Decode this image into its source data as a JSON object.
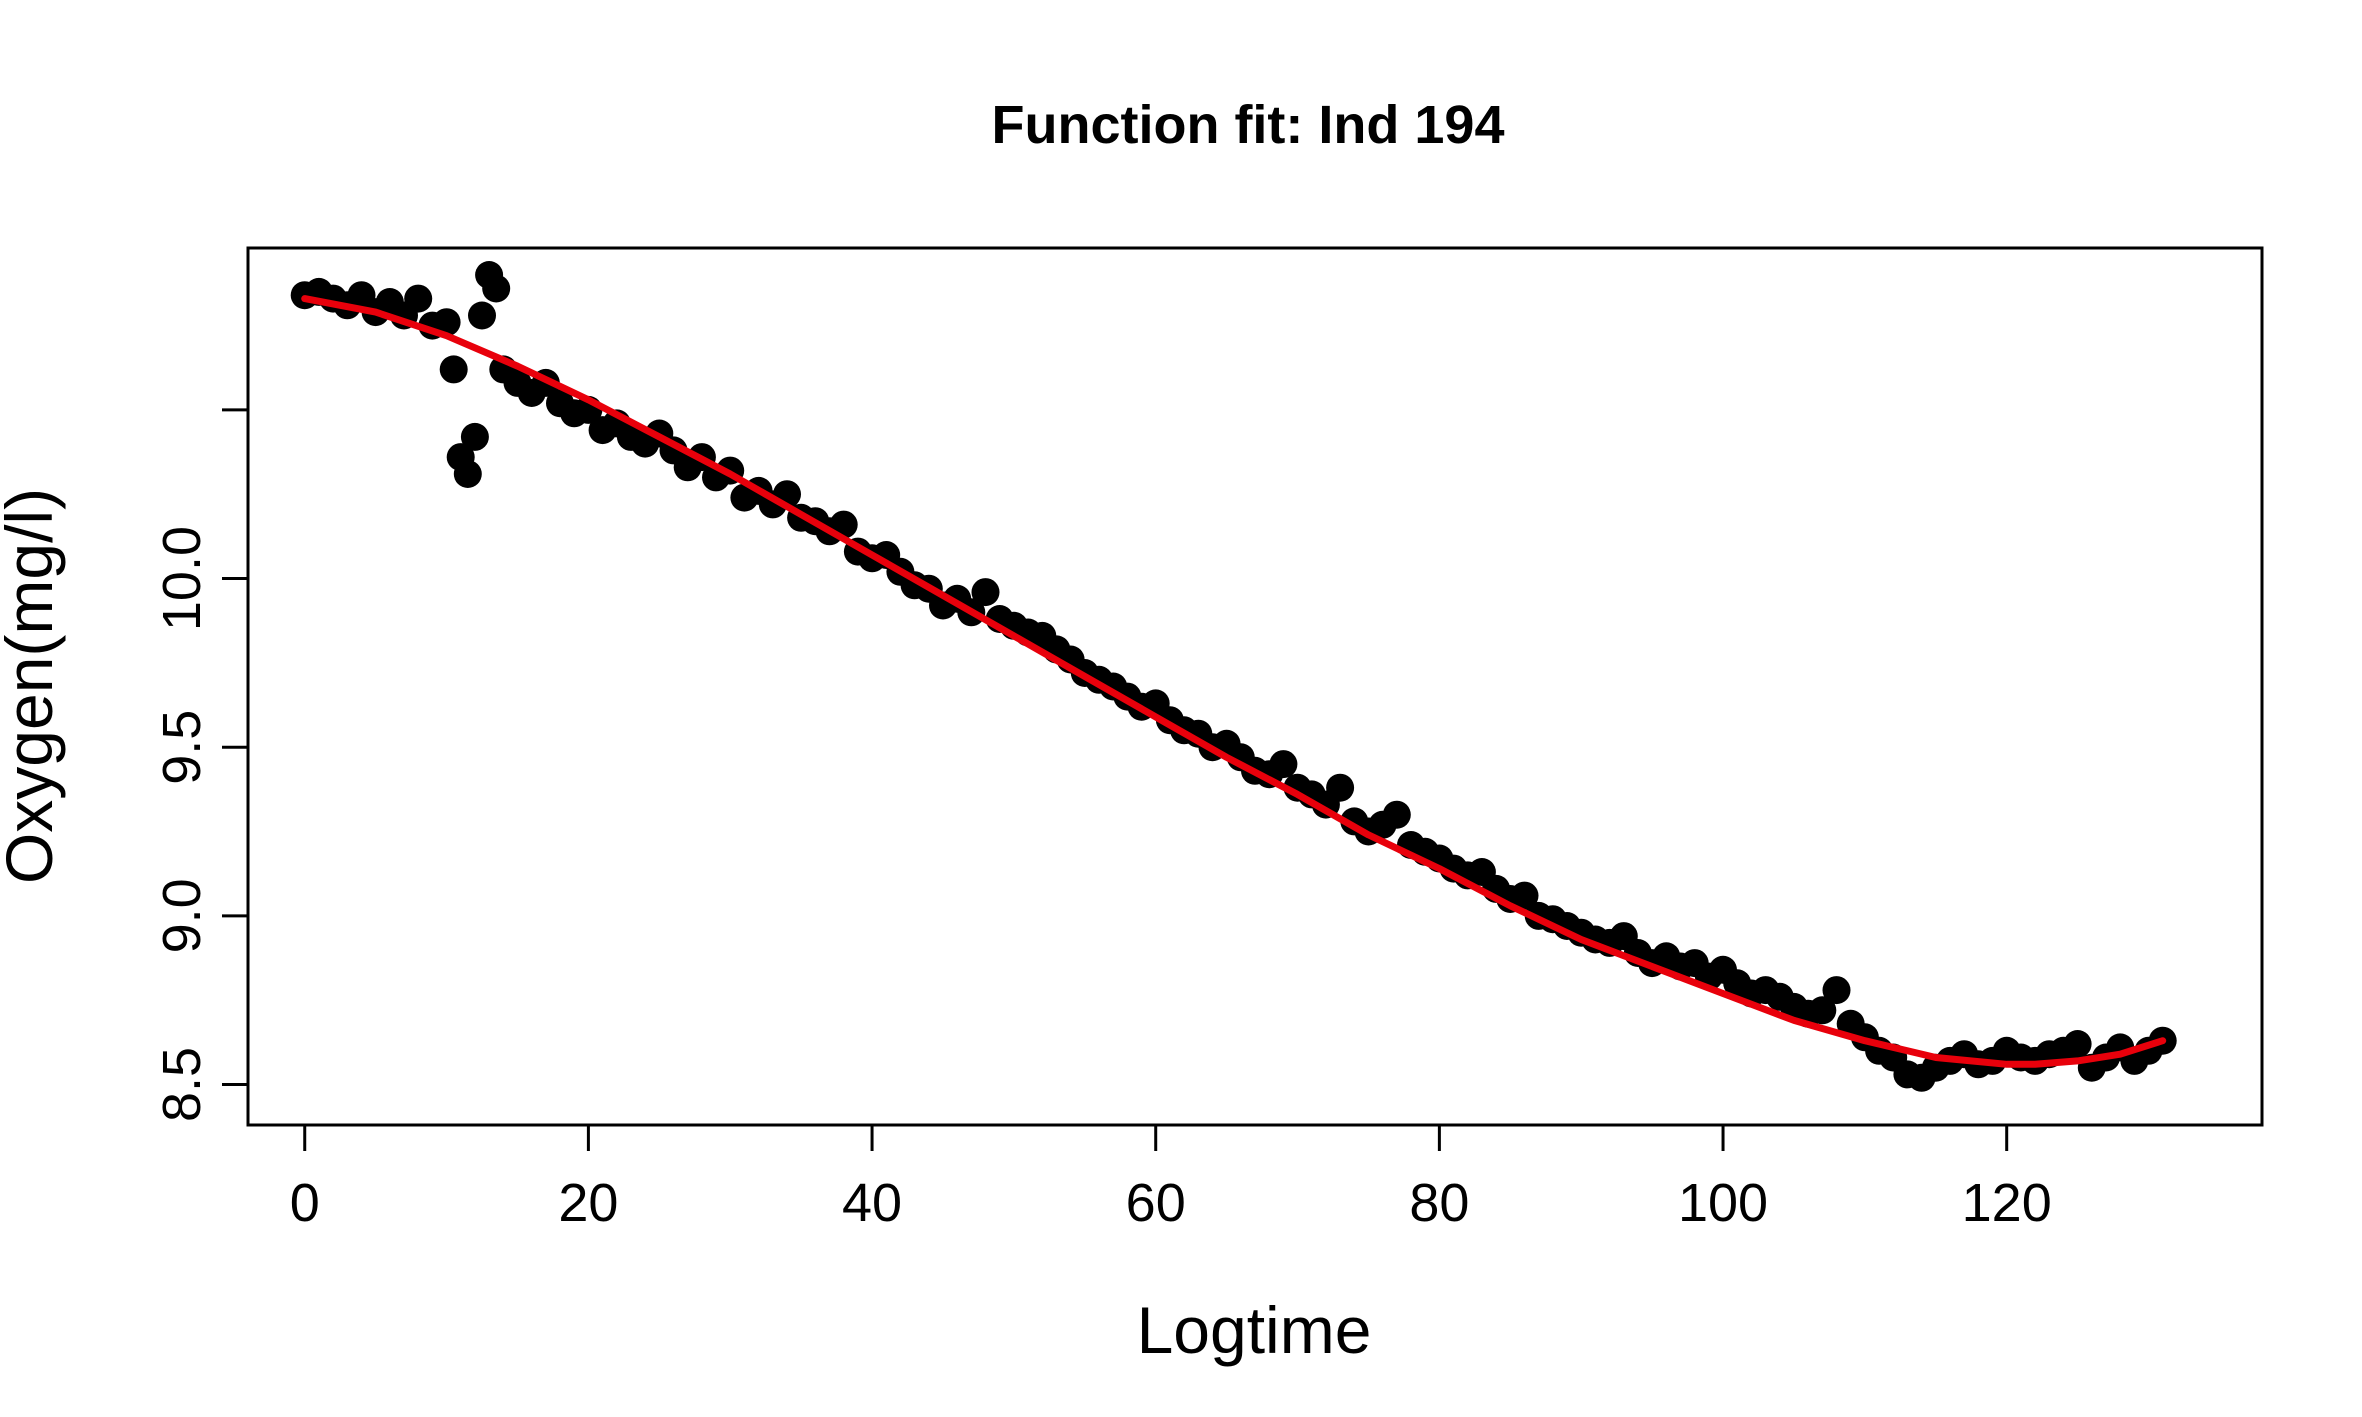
{
  "chart_data": {
    "type": "scatter",
    "title": "Function fit: Ind 194",
    "xlabel": "Logtime",
    "ylabel": "Oxygen(mg/l)",
    "xlim": [
      -4,
      138
    ],
    "ylim": [
      8.38,
      10.98
    ],
    "x_ticks": [
      0,
      20,
      40,
      60,
      80,
      100,
      120
    ],
    "x_tick_labels": [
      "0",
      "20",
      "40",
      "60",
      "80",
      "100",
      "120"
    ],
    "y_ticks": [
      8.5,
      9.0,
      9.5,
      10.0,
      10.5
    ],
    "y_tick_labels": [
      "8.5",
      "9.0",
      "9.5",
      "10.0",
      ""
    ],
    "grid": false,
    "legend": "none",
    "points_color": "#000000",
    "fit_color": "#e8000b",
    "series": [
      {
        "kind": "points",
        "x": [
          0,
          1,
          2,
          3,
          4,
          5,
          6,
          7,
          8,
          9,
          10,
          10.5,
          11,
          11.5,
          12,
          12.5,
          13,
          13.5,
          14,
          15,
          16,
          17,
          18,
          19,
          20,
          21,
          22,
          23,
          24,
          25,
          26,
          27,
          28,
          29,
          30,
          31,
          32,
          33,
          34,
          35,
          36,
          37,
          38,
          39,
          40,
          41,
          42,
          43,
          44,
          45,
          46,
          47,
          48,
          49,
          50,
          51,
          52,
          53,
          54,
          55,
          56,
          57,
          58,
          59,
          60,
          61,
          62,
          63,
          64,
          65,
          66,
          67,
          68,
          69,
          70,
          71,
          72,
          73,
          74,
          75,
          76,
          77,
          78,
          79,
          80,
          81,
          82,
          83,
          84,
          85,
          86,
          87,
          88,
          89,
          90,
          91,
          92,
          93,
          94,
          95,
          96,
          97,
          98,
          99,
          100,
          101,
          102,
          103,
          104,
          105,
          106,
          107,
          108,
          109,
          110,
          111,
          112,
          113,
          114,
          115,
          116,
          117,
          118,
          119,
          120,
          121,
          122,
          123,
          124,
          125,
          126,
          127,
          128,
          129,
          130,
          131
        ],
        "y": [
          10.84,
          10.85,
          10.83,
          10.81,
          10.84,
          10.79,
          10.82,
          10.78,
          10.83,
          10.75,
          10.76,
          10.62,
          10.36,
          10.31,
          10.42,
          10.78,
          10.9,
          10.86,
          10.62,
          10.58,
          10.55,
          10.58,
          10.52,
          10.49,
          10.5,
          10.44,
          10.46,
          10.42,
          10.4,
          10.43,
          10.38,
          10.33,
          10.36,
          10.3,
          10.32,
          10.24,
          10.26,
          10.22,
          10.25,
          10.18,
          10.17,
          10.14,
          10.16,
          10.08,
          10.06,
          10.07,
          10.02,
          9.98,
          9.97,
          9.92,
          9.94,
          9.9,
          9.96,
          9.88,
          9.86,
          9.84,
          9.83,
          9.79,
          9.76,
          9.72,
          9.7,
          9.68,
          9.65,
          9.62,
          9.63,
          9.58,
          9.55,
          9.54,
          9.5,
          9.51,
          9.47,
          9.43,
          9.42,
          9.45,
          9.38,
          9.36,
          9.33,
          9.38,
          9.28,
          9.25,
          9.27,
          9.3,
          9.21,
          9.19,
          9.17,
          9.14,
          9.12,
          9.13,
          9.08,
          9.05,
          9.06,
          9.0,
          8.99,
          8.97,
          8.95,
          8.93,
          8.92,
          8.94,
          8.89,
          8.86,
          8.88,
          8.85,
          8.86,
          8.82,
          8.84,
          8.8,
          8.77,
          8.78,
          8.76,
          8.73,
          8.71,
          8.72,
          8.78,
          8.68,
          8.64,
          8.6,
          8.58,
          8.53,
          8.52,
          8.55,
          8.57,
          8.59,
          8.56,
          8.57,
          8.6,
          8.58,
          8.57,
          8.59,
          8.6,
          8.62,
          8.55,
          8.58,
          8.61,
          8.57,
          8.6,
          8.63
        ]
      },
      {
        "kind": "fit-line",
        "x": [
          0,
          5,
          10,
          15,
          20,
          25,
          30,
          35,
          40,
          45,
          50,
          55,
          60,
          65,
          70,
          75,
          80,
          85,
          90,
          95,
          100,
          105,
          110,
          115,
          120,
          122,
          125,
          128,
          131
        ],
        "y": [
          10.83,
          10.79,
          10.72,
          10.63,
          10.53,
          10.42,
          10.31,
          10.19,
          10.07,
          9.95,
          9.83,
          9.71,
          9.59,
          9.47,
          9.36,
          9.24,
          9.14,
          9.03,
          8.93,
          8.85,
          8.77,
          8.69,
          8.63,
          8.58,
          8.56,
          8.56,
          8.57,
          8.59,
          8.63
        ]
      }
    ]
  }
}
